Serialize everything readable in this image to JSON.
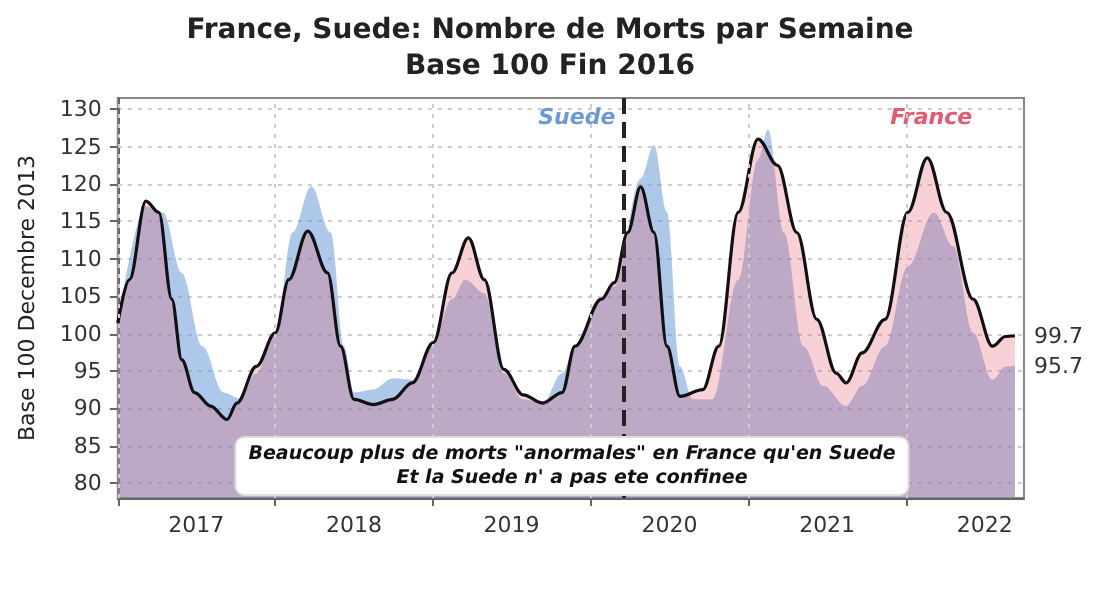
{
  "chart_data": {
    "type": "area",
    "title": "France, Suede: Nombre de Morts par Semaine",
    "subtitle": "Base 100 Fin 2016",
    "ylabel": "Base 100 Decembre 2013",
    "xlim": [
      "2017-01-01",
      "2022-10-01"
    ],
    "ylim": [
      78,
      131.5
    ],
    "xticks": [
      {
        "value": "2017-01-01",
        "label": null
      },
      {
        "value": "2017-07-02",
        "label": "2017"
      },
      {
        "value": "2018-01-01",
        "label": null
      },
      {
        "value": "2018-07-02",
        "label": "2018"
      },
      {
        "value": "2019-01-01",
        "label": null
      },
      {
        "value": "2019-07-02",
        "label": "2019"
      },
      {
        "value": "2020-01-01",
        "label": null
      },
      {
        "value": "2020-07-02",
        "label": "2020"
      },
      {
        "value": "2021-01-01",
        "label": null
      },
      {
        "value": "2021-07-02",
        "label": "2021"
      },
      {
        "value": "2022-01-01",
        "label": null
      },
      {
        "value": "2022-07-02",
        "label": "2022"
      }
    ],
    "yticks": [
      80,
      85,
      90,
      95,
      100,
      105,
      110,
      115,
      120,
      125,
      130
    ],
    "grid": true,
    "legend": false,
    "marker": "none",
    "series": [
      {
        "name": "Suede",
        "color": "#6a9ad6",
        "x": [
          "2017-01-01",
          "2017-03-07",
          "2017-04-16",
          "2017-05-29",
          "2017-07-16",
          "2017-09-03",
          "2017-10-11",
          "2017-11-18",
          "2018-01-01",
          "2018-02-10",
          "2018-03-25",
          "2018-05-09",
          "2018-06-09",
          "2018-07-02",
          "2018-08-16",
          "2018-09-30",
          "2018-11-14",
          "2019-01-02",
          "2019-02-14",
          "2019-03-17",
          "2019-04-30",
          "2019-06-14",
          "2019-07-29",
          "2019-09-12",
          "2019-10-27",
          "2019-11-26",
          "2020-01-26",
          "2020-02-25",
          "2020-04-26",
          "2020-05-27",
          "2020-06-26",
          "2020-07-26",
          "2020-08-25",
          "2020-10-09",
          "2020-12-08",
          "2021-01-23",
          "2021-02-15",
          "2021-03-24",
          "2021-05-08",
          "2021-06-23",
          "2021-08-15",
          "2021-09-21",
          "2021-11-13",
          "2022-01-05",
          "2022-03-06",
          "2022-04-20",
          "2022-06-05",
          "2022-07-20",
          "2022-08-19",
          "2022-09-10"
        ],
        "values": [
          101.4,
          117,
          116.2,
          108.1,
          98.3,
          92.1,
          91.3,
          94.7,
          100.1,
          113.5,
          119.7,
          113.5,
          98.3,
          92.1,
          92.5,
          94.0,
          93.8,
          98.8,
          104.6,
          107.2,
          105.4,
          94.7,
          91.2,
          90.7,
          94.7,
          98.3,
          104.6,
          106.3,
          120.7,
          125.2,
          116.2,
          95.6,
          91.2,
          91.2,
          107.2,
          123.3,
          127.3,
          113.5,
          98.3,
          93.0,
          90.3,
          93.0,
          98.3,
          109.0,
          116.2,
          111.7,
          100.1,
          93.8,
          95.6,
          95.7
        ]
      },
      {
        "name": "France",
        "color": "#e6596f",
        "x": [
          "2017-01-01",
          "2017-01-28",
          "2017-03-07",
          "2017-04-06",
          "2017-05-06",
          "2017-05-29",
          "2017-06-28",
          "2017-08-04",
          "2017-09-11",
          "2017-10-04",
          "2017-11-18",
          "2018-01-01",
          "2018-02-01",
          "2018-03-17",
          "2018-05-02",
          "2018-06-01",
          "2018-07-02",
          "2018-08-16",
          "2018-09-30",
          "2018-11-14",
          "2019-01-02",
          "2019-02-14",
          "2019-03-24",
          "2019-04-30",
          "2019-06-14",
          "2019-07-29",
          "2019-09-12",
          "2019-10-27",
          "2019-11-26",
          "2020-01-26",
          "2020-02-25",
          "2020-03-27",
          "2020-04-26",
          "2020-05-27",
          "2020-06-26",
          "2020-07-26",
          "2020-09-17",
          "2020-10-24",
          "2020-12-08",
          "2021-01-23",
          "2021-03-09",
          "2021-04-23",
          "2021-06-08",
          "2021-07-23",
          "2021-08-15",
          "2021-09-21",
          "2021-11-13",
          "2022-01-05",
          "2022-02-19",
          "2022-04-05",
          "2022-06-05",
          "2022-07-20",
          "2022-08-19",
          "2022-09-10"
        ],
        "values": [
          101.4,
          107.2,
          117.7,
          116.2,
          104.6,
          96.5,
          92.1,
          90.3,
          88.5,
          90.7,
          95.6,
          100.1,
          107.2,
          113.7,
          108.1,
          98.3,
          91.2,
          90.5,
          91.2,
          93.4,
          98.8,
          108.1,
          112.8,
          107.2,
          95.2,
          91.8,
          90.7,
          92.1,
          98.3,
          104.6,
          106.8,
          113.5,
          119.6,
          113.5,
          98.3,
          91.6,
          92.5,
          98.3,
          116.2,
          126.0,
          122.5,
          113.5,
          101.9,
          94.7,
          93.4,
          97.4,
          101.9,
          116.2,
          123.5,
          116.2,
          104.6,
          98.3,
          99.6,
          99.7
        ]
      }
    ],
    "ref_lines": [
      {
        "axis": "x",
        "value": "2020-03-17",
        "color": "#222222",
        "line_style": "dashed"
      }
    ],
    "annotations": [
      "Beaucoup plus de morts \"anormales\" en France qu'en Suede\nEt la Suede n' a pas ete confinee",
      {
        "text": "99.7",
        "x": "2022-09-10",
        "y": 99.7
      },
      {
        "text": "95.7",
        "x": "2022-09-10",
        "y": 95.7
      }
    ]
  }
}
